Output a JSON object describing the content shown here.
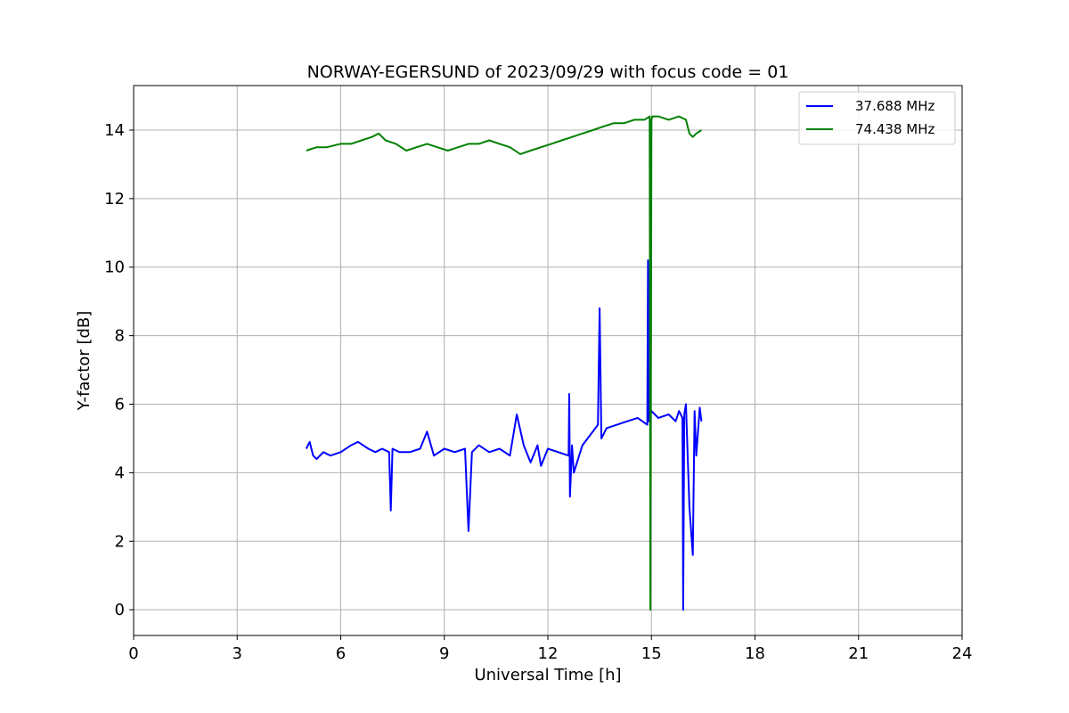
{
  "chart_data": {
    "type": "line",
    "title": "NORWAY-EGERSUND of 2023/09/29 with focus code = 01",
    "xlabel": "Universal Time [h]",
    "ylabel": "Y-factor [dB]",
    "xlim": [
      0,
      24
    ],
    "ylim": [
      -0.75,
      15.3
    ],
    "xticks": [
      0,
      3,
      6,
      9,
      12,
      15,
      18,
      21,
      24
    ],
    "yticks": [
      0,
      2,
      4,
      6,
      8,
      10,
      12,
      14
    ],
    "grid": true,
    "legend_position": "top-right",
    "series": [
      {
        "name": "37.688 MHz",
        "color": "#0000ff",
        "x": [
          5.0,
          5.1,
          5.2,
          5.3,
          5.5,
          5.7,
          6.0,
          6.3,
          6.5,
          6.8,
          7.0,
          7.2,
          7.4,
          7.45,
          7.5,
          7.7,
          8.0,
          8.3,
          8.5,
          8.7,
          9.0,
          9.3,
          9.6,
          9.7,
          9.8,
          10.0,
          10.3,
          10.6,
          10.9,
          11.1,
          11.3,
          11.5,
          11.7,
          11.8,
          12.0,
          12.3,
          12.6,
          12.62,
          12.64,
          12.7,
          12.75,
          13.0,
          13.3,
          13.45,
          13.5,
          13.55,
          13.7,
          14.0,
          14.3,
          14.6,
          14.88,
          14.9,
          14.92,
          15.0,
          15.2,
          15.5,
          15.7,
          15.8,
          15.9,
          15.92,
          15.95,
          16.0,
          16.1,
          16.2,
          16.25,
          16.3,
          16.4,
          16.45
        ],
        "y": [
          4.7,
          4.9,
          4.5,
          4.4,
          4.6,
          4.5,
          4.6,
          4.8,
          4.9,
          4.7,
          4.6,
          4.7,
          4.6,
          2.9,
          4.7,
          4.6,
          4.6,
          4.7,
          5.2,
          4.5,
          4.7,
          4.6,
          4.7,
          2.3,
          4.6,
          4.8,
          4.6,
          4.7,
          4.5,
          5.7,
          4.8,
          4.3,
          4.8,
          4.2,
          4.7,
          4.6,
          4.5,
          6.3,
          3.3,
          4.8,
          4.0,
          4.8,
          5.2,
          5.4,
          8.8,
          5.0,
          5.3,
          5.4,
          5.5,
          5.6,
          5.4,
          10.2,
          5.5,
          5.8,
          5.6,
          5.7,
          5.5,
          5.8,
          5.6,
          0.0,
          5.7,
          6.0,
          3.0,
          1.6,
          5.8,
          4.5,
          5.9,
          5.5
        ]
      },
      {
        "name": "74.438 MHz",
        "color": "#008000",
        "x": [
          5.0,
          5.3,
          5.6,
          6.0,
          6.3,
          6.6,
          6.9,
          7.1,
          7.3,
          7.6,
          7.9,
          8.2,
          8.5,
          8.8,
          9.1,
          9.4,
          9.7,
          10.0,
          10.3,
          10.6,
          10.9,
          11.2,
          11.5,
          11.8,
          12.1,
          12.4,
          12.7,
          13.0,
          13.3,
          13.6,
          13.9,
          14.2,
          14.5,
          14.8,
          14.95,
          14.97,
          15.0,
          15.03,
          15.2,
          15.5,
          15.8,
          16.0,
          16.1,
          16.2,
          16.3,
          16.45
        ],
        "y": [
          13.4,
          13.5,
          13.5,
          13.6,
          13.6,
          13.7,
          13.8,
          13.9,
          13.7,
          13.6,
          13.4,
          13.5,
          13.6,
          13.5,
          13.4,
          13.5,
          13.6,
          13.6,
          13.7,
          13.6,
          13.5,
          13.3,
          13.4,
          13.5,
          13.6,
          13.7,
          13.8,
          13.9,
          14.0,
          14.1,
          14.2,
          14.2,
          14.3,
          14.3,
          14.4,
          0.0,
          14.3,
          14.4,
          14.4,
          14.3,
          14.4,
          14.3,
          13.9,
          13.8,
          13.9,
          14.0
        ]
      }
    ]
  }
}
